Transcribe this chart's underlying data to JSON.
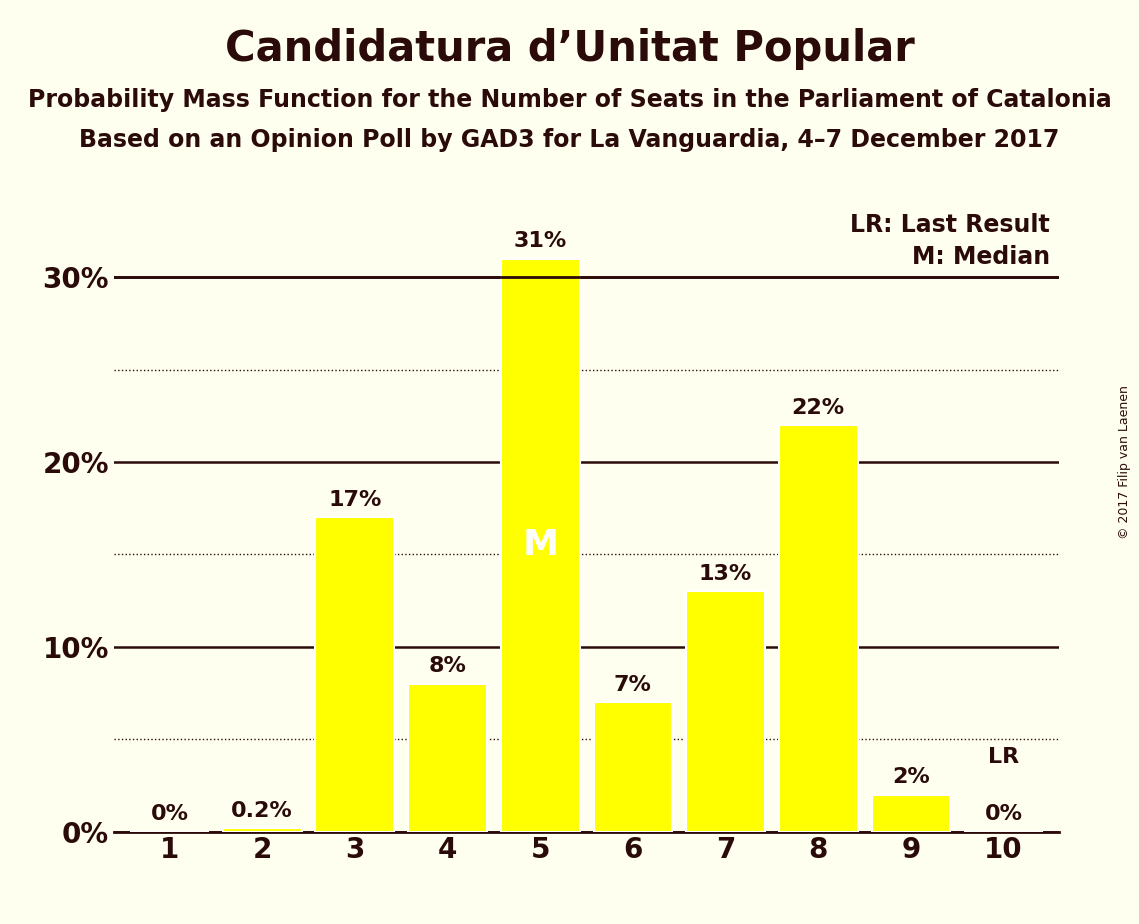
{
  "title": "Candidatura d’Unitat Popular",
  "subtitle1": "Probability Mass Function for the Number of Seats in the Parliament of Catalonia",
  "subtitle2": "Based on an Opinion Poll by GAD3 for La Vanguardia, 4–7 December 2017",
  "copyright": "© 2017 Filip van Laenen",
  "categories": [
    1,
    2,
    3,
    4,
    5,
    6,
    7,
    8,
    9,
    10
  ],
  "values": [
    0.0,
    0.2,
    17.0,
    8.0,
    31.0,
    7.0,
    13.0,
    22.0,
    2.0,
    0.0
  ],
  "bar_color": "#FFFF00",
  "bar_edge_color": "#FFFFFF",
  "background_color": "#FFFFF0",
  "text_color": "#2B0A0A",
  "median_seat": 5,
  "lr_seat": 10,
  "ylim": [
    0,
    34
  ],
  "yticks": [
    0,
    5,
    10,
    15,
    20,
    25,
    30
  ],
  "major_yticks": [
    0,
    10,
    20,
    30
  ],
  "dotted_yticks": [
    5,
    15,
    25
  ],
  "bar_labels": [
    "0%",
    "0.2%",
    "17%",
    "8%",
    "31%",
    "7%",
    "13%",
    "22%",
    "2%",
    "0%"
  ],
  "legend_lr": "LR: Last Result",
  "legend_m": "M: Median",
  "title_fontsize": 30,
  "subtitle_fontsize": 17,
  "label_fontsize": 16,
  "tick_fontsize": 20,
  "legend_fontsize": 17,
  "median_label_color": "#FFFFFF",
  "lr_label_color": "#2B0A0A",
  "median_m_fontsize": 26
}
